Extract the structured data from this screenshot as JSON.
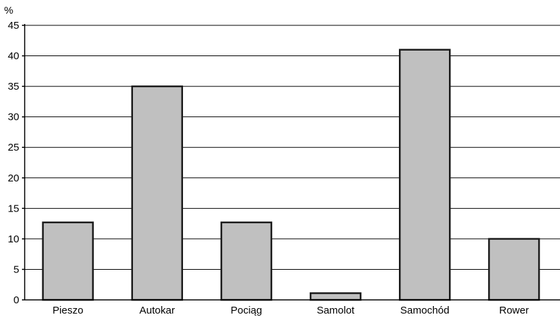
{
  "chart_data": {
    "type": "bar",
    "categories": [
      "Pieszo",
      "Autokar",
      "Pociąg",
      "Samolot",
      "Samochód",
      "Rower"
    ],
    "values": [
      12.7,
      35,
      12.7,
      1.1,
      41,
      10
    ],
    "yunit": "%",
    "ylim": [
      0,
      45
    ],
    "yticks": [
      "0",
      "5",
      "10",
      "15",
      "20",
      "25",
      "30",
      "35",
      "40",
      "45"
    ],
    "grid": true,
    "bar_color": "#c0c0c0",
    "bar_edge_color": "#1a1a1a",
    "grid_color": "#000000"
  }
}
